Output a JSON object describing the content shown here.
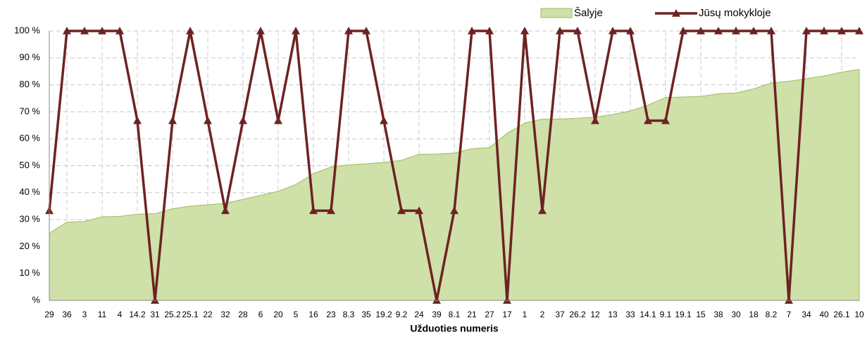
{
  "chart_data": {
    "type": "line",
    "x_label": "Užduoties numeris",
    "categories": [
      "29",
      "36",
      "3",
      "11",
      "4",
      "14.2",
      "31",
      "25.2",
      "25.1",
      "22",
      "32",
      "28",
      "6",
      "20",
      "5",
      "16",
      "23",
      "8.3",
      "35",
      "19.2",
      "9.2",
      "24",
      "39",
      "8.1",
      "21",
      "27",
      "17",
      "1",
      "2",
      "37",
      "26.2",
      "12",
      "13",
      "33",
      "14.1",
      "9.1",
      "19.1",
      "15",
      "38",
      "30",
      "18",
      "8.2",
      "7",
      "34",
      "40",
      "26.1",
      "10"
    ],
    "series": [
      {
        "name": "Šalyje",
        "style": "area",
        "color": "#cfe0a9",
        "stroke": "#9bbb59",
        "values": [
          25,
          29,
          29.3,
          31,
          31.2,
          32,
          32.2,
          34,
          35,
          35.5,
          36,
          37.5,
          39,
          40.5,
          43,
          47,
          49.5,
          50.3,
          50.7,
          51.2,
          52,
          54.2,
          54.3,
          54.7,
          56.3,
          56.7,
          62,
          65.8,
          67.3,
          67.3,
          67.6,
          68,
          69,
          70.3,
          72.5,
          75.3,
          75.5,
          75.7,
          76.7,
          77,
          78.5,
          80.7,
          81.3,
          82.3,
          83.3,
          84.7,
          85.7
        ]
      },
      {
        "name": "Jūsų mokykloje",
        "style": "line",
        "marker": "triangle",
        "color": "#6e2222",
        "values": [
          33.3,
          100,
          100,
          100,
          100,
          66.7,
          0,
          66.7,
          100,
          66.7,
          33.3,
          66.7,
          100,
          66.7,
          100,
          33.3,
          33.3,
          100,
          100,
          66.7,
          33.3,
          33.3,
          0,
          33.3,
          100,
          100,
          0,
          100,
          33.3,
          100,
          100,
          66.7,
          100,
          100,
          66.7,
          66.7,
          100,
          100,
          100,
          100,
          100,
          100,
          0,
          100,
          100,
          100,
          100
        ]
      }
    ],
    "ylim": [
      0,
      100
    ],
    "yticks": [
      {
        "value": 0,
        "label": "%"
      },
      {
        "value": 10,
        "label": "10 %"
      },
      {
        "value": 20,
        "label": "20 %"
      },
      {
        "value": 30,
        "label": "30 %"
      },
      {
        "value": 40,
        "label": "40 %"
      },
      {
        "value": 50,
        "label": "50 %"
      },
      {
        "value": 60,
        "label": "60 %"
      },
      {
        "value": 70,
        "label": "70 %"
      },
      {
        "value": 80,
        "label": "80 %"
      },
      {
        "value": 90,
        "label": "90 %"
      },
      {
        "value": 100,
        "label": "100 %"
      }
    ],
    "grid": true,
    "legend": "top-right"
  }
}
